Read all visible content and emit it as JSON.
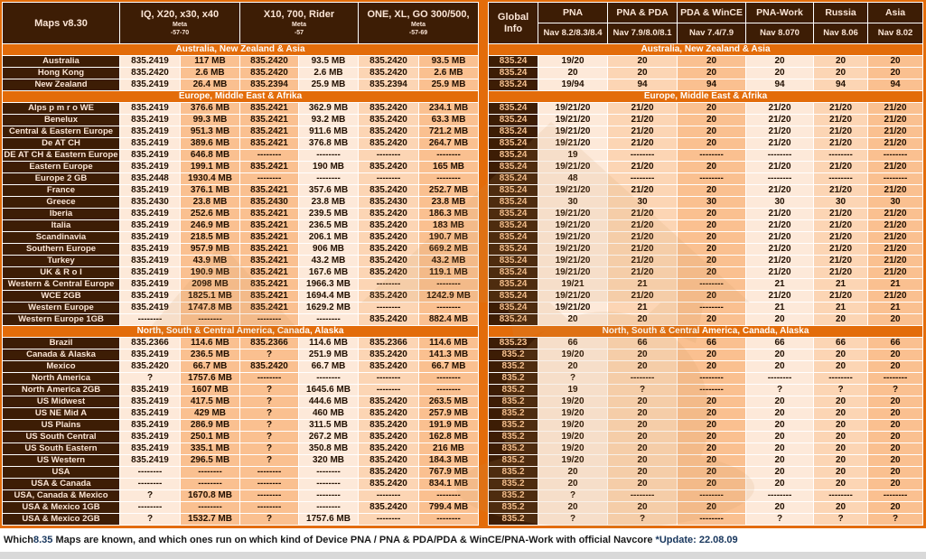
{
  "colors": {
    "accent_orange": "#E36C0A",
    "dark_brown": "#3D1D05",
    "cell_light": "#FDE9D9",
    "cell_mid": "#FCD5B4",
    "cell_dark": "#FAC090",
    "caption_highlight": "#17365D"
  },
  "left_table": {
    "title": "Maps v8.30",
    "columns": [
      {
        "device": "IQ, X20, x30, x40",
        "meta": "Meta",
        "meta_value": "-57-70"
      },
      {
        "device": "X10, 700, Rider",
        "meta": "Meta",
        "meta_value": "-57"
      },
      {
        "device": "ONE, XL, GO 300/500,",
        "meta": "Meta",
        "meta_value": "-57-69"
      }
    ]
  },
  "right_table": {
    "title": "Global Info",
    "columns": [
      {
        "device": "PNA",
        "nav": "Nav 8.2/8.3/8.4"
      },
      {
        "device": "PNA & PDA",
        "nav": "Nav 7.9/8.0/8.1"
      },
      {
        "device": "PDA & WinCE",
        "nav": "Nav 7.4/7.9"
      },
      {
        "device": "PNA-Work",
        "nav": "Nav 8.070"
      },
      {
        "device": "Russia",
        "nav": "Nav 8.06"
      },
      {
        "device": "Asia",
        "nav": "Nav 8.02"
      }
    ]
  },
  "sections": [
    {
      "header": "Australia, New Zealand & Asia",
      "rows": [
        {
          "label": "Australia",
          "left": [
            "835.2419",
            "117 MB",
            "835.2420",
            "93.5 MB",
            "835.2420",
            "93.5 MB"
          ],
          "global": "835.24",
          "right": [
            "19/20",
            "20",
            "20",
            "20",
            "20",
            "20"
          ]
        },
        {
          "label": "Hong Kong",
          "left": [
            "835.2420",
            "2.6 MB",
            "835.2420",
            "2.6 MB",
            "835.2420",
            "2.6 MB"
          ],
          "global": "835.24",
          "right": [
            "20",
            "20",
            "20",
            "20",
            "20",
            "20"
          ]
        },
        {
          "label": "New Zealand",
          "left": [
            "835.2419",
            "26.4 MB",
            "835.2394",
            "25.9 MB",
            "835.2394",
            "25.9 MB"
          ],
          "global": "835.24",
          "right": [
            "19/94",
            "94",
            "94",
            "94",
            "94",
            "94"
          ]
        }
      ]
    },
    {
      "header": "Europe, Middle East & Afrika",
      "rows": [
        {
          "label": "Alps p m r o WE",
          "left": [
            "835.2419",
            "376.6 MB",
            "835.2421",
            "362.9 MB",
            "835.2420",
            "234.1 MB"
          ],
          "global": "835.24",
          "right": [
            "19/21/20",
            "21/20",
            "20",
            "21/20",
            "21/20",
            "21/20"
          ]
        },
        {
          "label": "Benelux",
          "left": [
            "835.2419",
            "99.3 MB",
            "835.2421",
            "93.2 MB",
            "835.2420",
            "63.3 MB"
          ],
          "global": "835.24",
          "right": [
            "19/21/20",
            "21/20",
            "20",
            "21/20",
            "21/20",
            "21/20"
          ]
        },
        {
          "label": "Central & Eastern Europe",
          "left": [
            "835.2419",
            "951.3 MB",
            "835.2421",
            "911.6 MB",
            "835.2420",
            "721.2 MB"
          ],
          "global": "835.24",
          "right": [
            "19/21/20",
            "21/20",
            "20",
            "21/20",
            "21/20",
            "21/20"
          ]
        },
        {
          "label": "De AT CH",
          "left": [
            "835.2419",
            "389.6 MB",
            "835.2421",
            "376.8 MB",
            "835.2420",
            "264.7 MB"
          ],
          "global": "835.24",
          "right": [
            "19/21/20",
            "21/20",
            "20",
            "21/20",
            "21/20",
            "21/20"
          ]
        },
        {
          "label": "DE AT CH & Eastern Europe",
          "left": [
            "835.2419",
            "646.8 MB",
            "--------",
            "--------",
            "--------",
            "--------"
          ],
          "global": "835.24",
          "right": [
            "19",
            "--------",
            "--------",
            "--------",
            "--------",
            "--------"
          ]
        },
        {
          "label": "Eastern Europe",
          "left": [
            "835.2419",
            "199.1 MB",
            "835.2421",
            "190 MB",
            "835.2420",
            "165 MB"
          ],
          "global": "835.24",
          "right": [
            "19/21/20",
            "21/20",
            "20",
            "21/20",
            "21/20",
            "21/20"
          ]
        },
        {
          "label": "Europe 2 GB",
          "left": [
            "835.2448",
            "1930.4 MB",
            "--------",
            "--------",
            "--------",
            "--------"
          ],
          "global": "835.24",
          "right": [
            "48",
            "--------",
            "--------",
            "--------",
            "--------",
            "--------"
          ]
        },
        {
          "label": "France",
          "left": [
            "835.2419",
            "376.1 MB",
            "835.2421",
            "357.6 MB",
            "835.2420",
            "252.7 MB"
          ],
          "global": "835.24",
          "right": [
            "19/21/20",
            "21/20",
            "20",
            "21/20",
            "21/20",
            "21/20"
          ]
        },
        {
          "label": "Greece",
          "left": [
            "835.2430",
            "23.8 MB",
            "835.2430",
            "23.8 MB",
            "835.2430",
            "23.8 MB"
          ],
          "global": "835.24",
          "right": [
            "30",
            "30",
            "30",
            "30",
            "30",
            "30"
          ]
        },
        {
          "label": "Iberia",
          "left": [
            "835.2419",
            "252.6 MB",
            "835.2421",
            "239.5 MB",
            "835.2420",
            "186.3 MB"
          ],
          "global": "835.24",
          "right": [
            "19/21/20",
            "21/20",
            "20",
            "21/20",
            "21/20",
            "21/20"
          ]
        },
        {
          "label": "Italia",
          "left": [
            "835.2419",
            "246.9 MB",
            "835.2421",
            "236.5 MB",
            "835.2420",
            "183 MB"
          ],
          "global": "835.24",
          "right": [
            "19/21/20",
            "21/20",
            "20",
            "21/20",
            "21/20",
            "21/20"
          ]
        },
        {
          "label": "Scandinavia",
          "left": [
            "835.2419",
            "218.5 MB",
            "835.2421",
            "206.1 MB",
            "835.2420",
            "190.7 MB"
          ],
          "global": "835.24",
          "right": [
            "19/21/20",
            "21/20",
            "20",
            "21/20",
            "21/20",
            "21/20"
          ]
        },
        {
          "label": "Southern Europe",
          "left": [
            "835.2419",
            "957.9 MB",
            "835.2421",
            "906 MB",
            "835.2420",
            "669.2 MB"
          ],
          "global": "835.24",
          "right": [
            "19/21/20",
            "21/20",
            "20",
            "21/20",
            "21/20",
            "21/20"
          ]
        },
        {
          "label": "Turkey",
          "left": [
            "835.2419",
            "43.9 MB",
            "835.2421",
            "43.2 MB",
            "835.2420",
            "43.2 MB"
          ],
          "global": "835.24",
          "right": [
            "19/21/20",
            "21/20",
            "20",
            "21/20",
            "21/20",
            "21/20"
          ]
        },
        {
          "label": "UK & R o I",
          "left": [
            "835.2419",
            "190.9 MB",
            "835.2421",
            "167.6 MB",
            "835.2420",
            "119.1 MB"
          ],
          "global": "835.24",
          "right": [
            "19/21/20",
            "21/20",
            "20",
            "21/20",
            "21/20",
            "21/20"
          ]
        },
        {
          "label": "Western & Central Europe",
          "left": [
            "835.2419",
            "2098 MB",
            "835.2421",
            "1966.3 MB",
            "--------",
            "--------"
          ],
          "global": "835.24",
          "right": [
            "19/21",
            "21",
            "--------",
            "21",
            "21",
            "21"
          ]
        },
        {
          "label": "WCE 2GB",
          "left": [
            "835.2419",
            "1825.1 MB",
            "835.2421",
            "1694.4 MB",
            "835.2420",
            "1242.9 MB"
          ],
          "global": "835.24",
          "right": [
            "19/21/20",
            "21/20",
            "20",
            "21/20",
            "21/20",
            "21/20"
          ]
        },
        {
          "label": "Western Europe",
          "left": [
            "835.2419",
            "1747.8 MB",
            "835.2421",
            "1629.2 MB",
            "--------",
            "--------"
          ],
          "global": "835.24",
          "right": [
            "19/21/20",
            "21",
            "--------",
            "21",
            "21",
            "21"
          ]
        },
        {
          "label": "Western Europe 1GB",
          "left": [
            "--------",
            "--------",
            "--------",
            "--------",
            "835.2420",
            "882.4 MB"
          ],
          "global": "835.24",
          "right": [
            "20",
            "20",
            "20",
            "20",
            "20",
            "20"
          ]
        }
      ]
    },
    {
      "header": "North, South & Central America, Canada, Alaska",
      "rows": [
        {
          "label": "Brazil",
          "left": [
            "835.2366",
            "114.6 MB",
            "835.2366",
            "114.6 MB",
            "835.2366",
            "114.6 MB"
          ],
          "global": "835.23",
          "right": [
            "66",
            "66",
            "66",
            "66",
            "66",
            "66"
          ]
        },
        {
          "label": "Canada & Alaska",
          "left": [
            "835.2419",
            "236.5 MB",
            "?",
            "251.9 MB",
            "835.2420",
            "141.3 MB"
          ],
          "global": "835.2",
          "right": [
            "19/20",
            "20",
            "20",
            "20",
            "20",
            "20"
          ]
        },
        {
          "label": "Mexico",
          "left": [
            "835.2420",
            "66.7 MB",
            "835.2420",
            "66.7 MB",
            "835.2420",
            "66.7 MB"
          ],
          "global": "835.2",
          "right": [
            "20",
            "20",
            "20",
            "20",
            "20",
            "20"
          ]
        },
        {
          "label": "North America",
          "left": [
            "?",
            "1757.6 MB",
            "--------",
            "--------",
            "--------",
            "--------"
          ],
          "global": "835.2",
          "right": [
            "?",
            "--------",
            "--------",
            "--------",
            "--------",
            "--------"
          ]
        },
        {
          "label": "North America 2GB",
          "left": [
            "835.2419",
            "1607 MB",
            "?",
            "1645.6 MB",
            "--------",
            "--------"
          ],
          "global": "835.2",
          "right": [
            "19",
            "?",
            "--------",
            "?",
            "?",
            "?"
          ]
        },
        {
          "label": "US Midwest",
          "left": [
            "835.2419",
            "417.5 MB",
            "?",
            "444.6 MB",
            "835.2420",
            "263.5 MB"
          ],
          "global": "835.2",
          "right": [
            "19/20",
            "20",
            "20",
            "20",
            "20",
            "20"
          ]
        },
        {
          "label": "US NE Mid A",
          "left": [
            "835.2419",
            "429 MB",
            "?",
            "460 MB",
            "835.2420",
            "257.9 MB"
          ],
          "global": "835.2",
          "right": [
            "19/20",
            "20",
            "20",
            "20",
            "20",
            "20"
          ]
        },
        {
          "label": "US Plains",
          "left": [
            "835.2419",
            "286.9 MB",
            "?",
            "311.5 MB",
            "835.2420",
            "191.9 MB"
          ],
          "global": "835.2",
          "right": [
            "19/20",
            "20",
            "20",
            "20",
            "20",
            "20"
          ]
        },
        {
          "label": "US South Central",
          "left": [
            "835.2419",
            "250.1 MB",
            "?",
            "267.2 MB",
            "835.2420",
            "162.8 MB"
          ],
          "global": "835.2",
          "right": [
            "19/20",
            "20",
            "20",
            "20",
            "20",
            "20"
          ]
        },
        {
          "label": "US South Eastern",
          "left": [
            "835.2419",
            "335.1 MB",
            "?",
            "350.8 MB",
            "835.2420",
            "216 MB"
          ],
          "global": "835.2",
          "right": [
            "19/20",
            "20",
            "20",
            "20",
            "20",
            "20"
          ]
        },
        {
          "label": "US Western",
          "left": [
            "835.2419",
            "296.5 MB",
            "?",
            "320 MB",
            "835.2420",
            "184.3 MB"
          ],
          "global": "835.2",
          "right": [
            "19/20",
            "20",
            "20",
            "20",
            "20",
            "20"
          ]
        },
        {
          "label": "USA",
          "left": [
            "--------",
            "--------",
            "--------",
            "--------",
            "835.2420",
            "767.9 MB"
          ],
          "global": "835.2",
          "right": [
            "20",
            "20",
            "20",
            "20",
            "20",
            "20"
          ]
        },
        {
          "label": "USA & Canada",
          "left": [
            "--------",
            "--------",
            "--------",
            "--------",
            "835.2420",
            "834.1 MB"
          ],
          "global": "835.2",
          "right": [
            "20",
            "20",
            "20",
            "20",
            "20",
            "20"
          ]
        },
        {
          "label": "USA, Canada & Mexico",
          "left": [
            "?",
            "1670.8 MB",
            "--------",
            "--------",
            "--------",
            "--------"
          ],
          "global": "835.2",
          "right": [
            "?",
            "--------",
            "--------",
            "--------",
            "--------",
            "--------"
          ]
        },
        {
          "label": "USA & Mexico 1GB",
          "left": [
            "--------",
            "--------",
            "--------",
            "--------",
            "835.2420",
            "799.4 MB"
          ],
          "global": "835.2",
          "right": [
            "20",
            "20",
            "20",
            "20",
            "20",
            "20"
          ]
        },
        {
          "label": "USA & Mexico 2GB",
          "left": [
            "?",
            "1532.7 MB",
            "?",
            "1757.6 MB",
            "--------",
            "--------"
          ],
          "global": "835.2",
          "right": [
            "?",
            "?",
            "--------",
            "?",
            "?",
            "?"
          ]
        }
      ]
    }
  ],
  "caption": {
    "part1": "Which ",
    "maps_version": "8.35",
    "part2": " Maps are known, and which ones run on which kind of Device PNA / PNA & PDA/PDA & WinCE/PNA-Work with official Navcore ",
    "update": "*Update: 22.08.09"
  }
}
